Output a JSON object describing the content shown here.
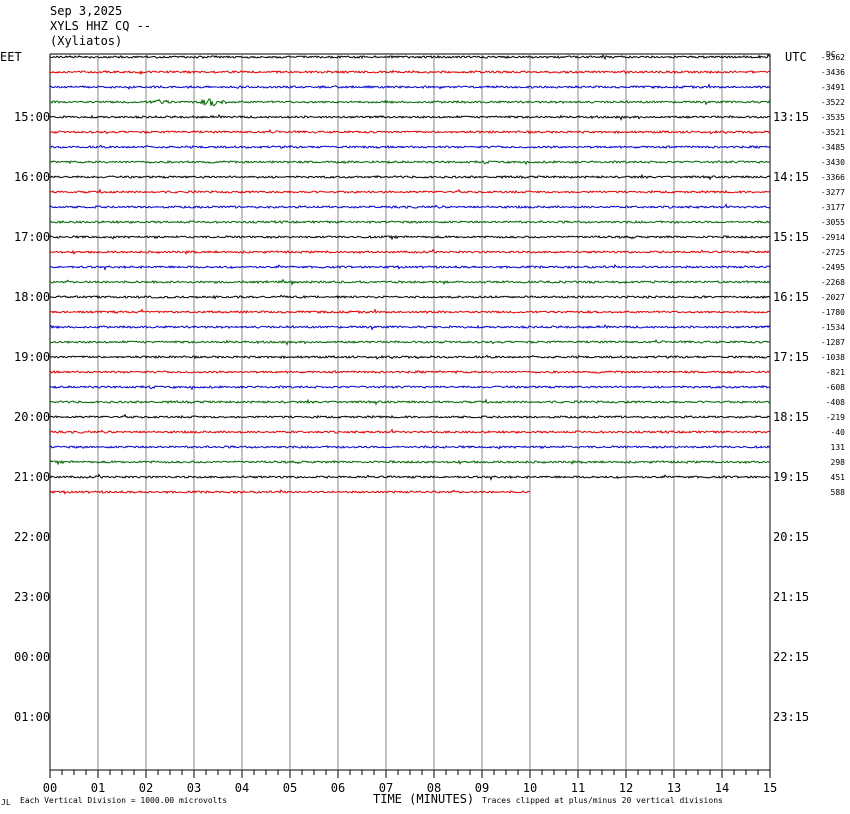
{
  "header": {
    "date": "Sep 3,2025",
    "station": "XYLS HHZ CQ --",
    "location": "(Xyliatos)"
  },
  "left_tz": "EET",
  "right_tz": "UTC",
  "chart_data": {
    "type": "line",
    "title": "Sep 3,2025 XYLS HHZ CQ -- (Xyliatos)",
    "xlabel": "TIME (MINUTES)",
    "xlim": [
      0,
      15
    ],
    "x_tick_labels": [
      "00",
      "01",
      "02",
      "03",
      "04",
      "05",
      "06",
      "07",
      "08",
      "09",
      "10",
      "11",
      "12",
      "13",
      "14",
      "15"
    ],
    "hour_labels_left": [
      "15:00",
      "16:00",
      "17:00",
      "18:00",
      "19:00",
      "20:00",
      "21:00",
      "22:00",
      "23:00",
      "00:00",
      "01:00"
    ],
    "hour_labels_right": [
      "13:15",
      "14:15",
      "15:15",
      "16:15",
      "17:15",
      "18:15",
      "19:15",
      "20:15",
      "21:15",
      "22:15",
      "23:15"
    ],
    "dc_header": "DC",
    "trace_colors": [
      "#000000",
      "#dd0000",
      "#0000cc",
      "#006600"
    ],
    "trace_count": 30,
    "last_trace_end_minute": 10,
    "event_trace_index": 3,
    "event_window_minutes": [
      2.0,
      4.0
    ],
    "dc_offsets": [
      "-3362",
      "-3436",
      "-3491",
      "-3522",
      "-3535",
      "-3521",
      "-3485",
      "-3430",
      "-3366",
      "-3277",
      "-3177",
      "-3055",
      "-2914",
      "-2725",
      "-2495",
      "-2268",
      "-2027",
      "-1780",
      "-1534",
      "-1287",
      "-1038",
      "-821",
      "-608",
      "-408",
      "-219",
      "-40",
      "131",
      "298",
      "451",
      "588"
    ]
  },
  "footer": {
    "scale_note": "Each Vertical Division = 1000.00 microvolts",
    "clip_note": "Traces clipped at plus/minus 20 vertical divisions",
    "corner_mark": "JL"
  }
}
